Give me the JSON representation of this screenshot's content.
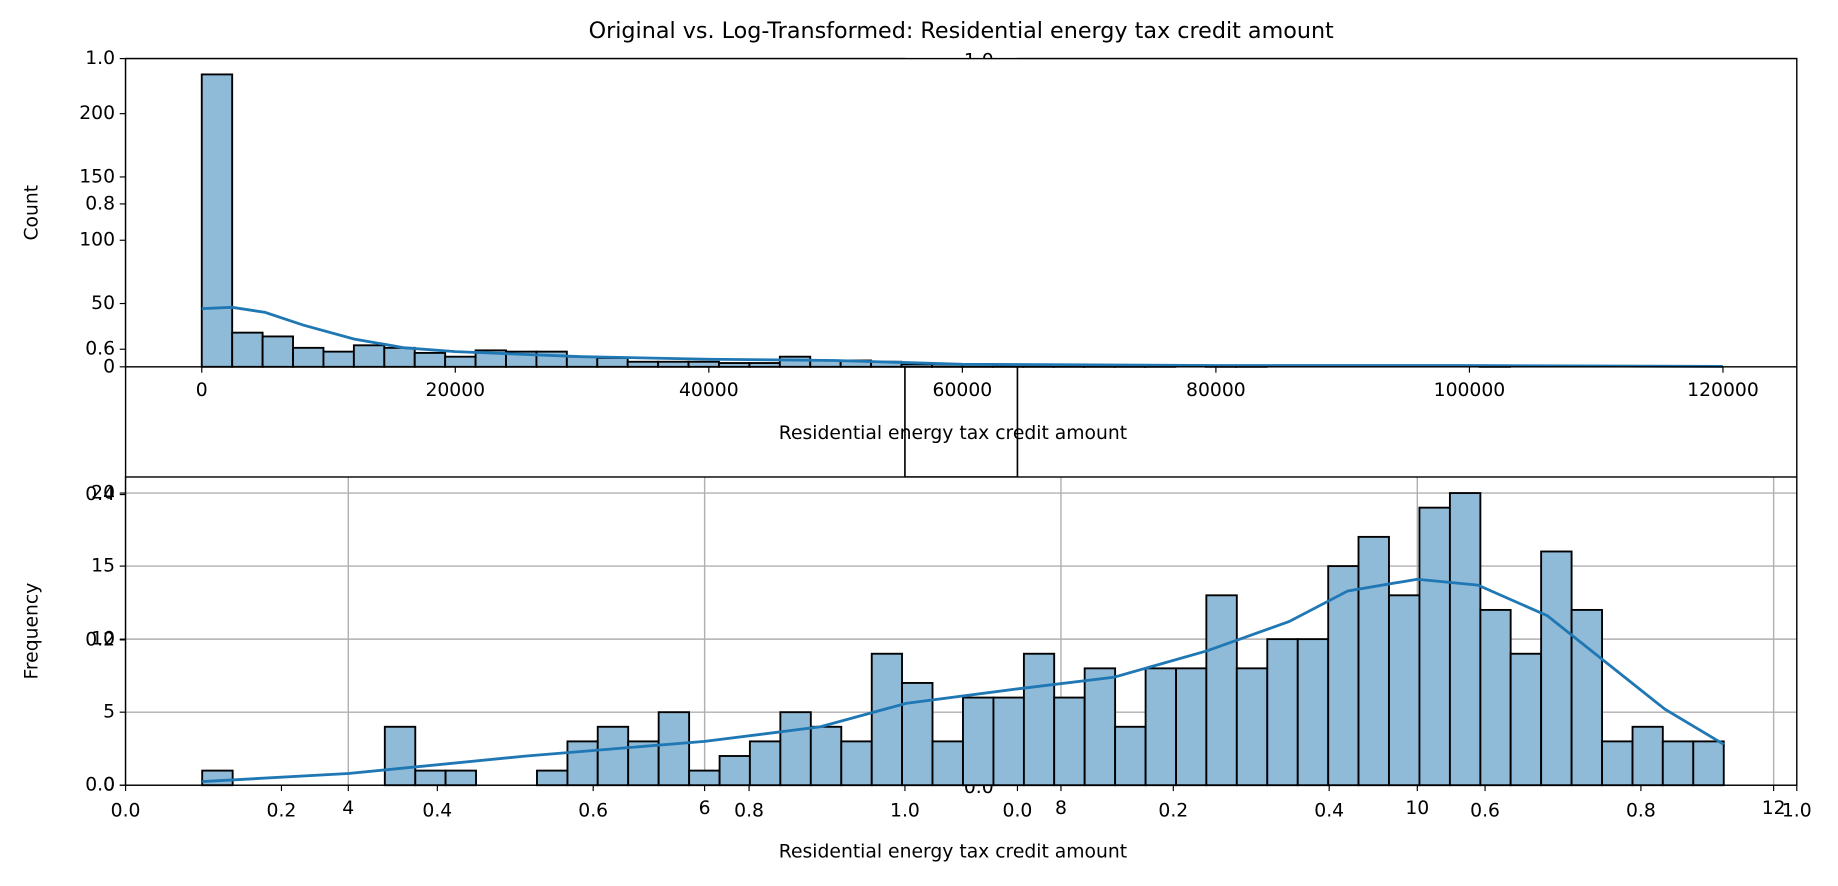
{
  "title": "Original vs. Log-Transformed: Residential energy tax credit amount",
  "chart_data": [
    {
      "type": "histogram",
      "xlabel": "Residential energy tax credit amount",
      "ylabel": "Count",
      "bins": [
        0,
        2400,
        4800,
        7200,
        9600,
        12000,
        14400,
        16800,
        19200,
        21600,
        24000,
        26400,
        28800,
        31200,
        33600,
        36000,
        38400,
        40800,
        43200,
        45600,
        48000,
        50400,
        52800,
        55200,
        57600,
        60000,
        62400,
        64800,
        67200,
        69600,
        72000,
        74400,
        76800,
        79200,
        81600,
        84000,
        86400,
        88800,
        91200,
        93600,
        96000,
        98400,
        100800,
        103200,
        105600,
        108000,
        110400,
        112800,
        115200,
        117600,
        120000
      ],
      "counts": [
        231,
        27,
        24,
        15,
        12,
        17,
        15,
        11,
        8,
        13,
        12,
        12,
        8,
        7,
        4,
        4,
        4,
        3,
        3,
        8,
        5,
        5,
        4,
        2,
        2,
        2,
        1,
        1,
        1,
        1,
        1,
        1,
        0,
        1,
        1,
        0,
        0,
        0,
        0,
        0,
        0,
        0,
        1,
        0,
        0,
        0,
        0,
        0,
        0,
        0
      ],
      "color": "#8fbbd9",
      "edgecolor": "#000000",
      "kde": {
        "x": [
          0,
          2400,
          5000,
          8000,
          12000,
          16000,
          20000,
          30000,
          40000,
          50000,
          60000,
          80000,
          100000,
          120000
        ],
        "values": [
          46,
          47,
          43,
          33,
          22,
          15,
          12,
          8,
          6,
          5,
          2,
          1,
          1,
          0.3
        ],
        "color": "#1f77b4"
      },
      "xlim": [
        -6009,
        125824
      ],
      "ylim": [
        0,
        243.5
      ],
      "xticks": [
        0,
        20000,
        40000,
        60000,
        80000,
        100000,
        120000
      ],
      "yticks": [
        0,
        50,
        100,
        150,
        200
      ],
      "grid": false
    },
    {
      "type": "histogram",
      "xlabel": "Residential energy tax credit amount",
      "ylabel": "Frequency",
      "bins": [
        3.18,
        3.351,
        3.522,
        3.692,
        3.863,
        4.034,
        4.205,
        4.376,
        4.546,
        4.717,
        4.888,
        5.059,
        5.23,
        5.4,
        5.571,
        5.742,
        5.913,
        6.084,
        6.254,
        6.425,
        6.596,
        6.767,
        6.938,
        7.108,
        7.279,
        7.45,
        7.621,
        7.792,
        7.962,
        8.133,
        8.304,
        8.475,
        8.646,
        8.816,
        8.987,
        9.158,
        9.329,
        9.5,
        9.67,
        9.841,
        10.012,
        10.183,
        10.354,
        10.524,
        10.695,
        10.866,
        11.037,
        11.208,
        11.378,
        11.549,
        11.72
      ],
      "counts": [
        1,
        0,
        0,
        0,
        0,
        0,
        4,
        1,
        1,
        0,
        0,
        1,
        3,
        4,
        3,
        5,
        1,
        2,
        3,
        5,
        4,
        3,
        9,
        7,
        3,
        6,
        6,
        9,
        6,
        8,
        4,
        8,
        8,
        13,
        8,
        10,
        10,
        15,
        17,
        13,
        19,
        20,
        12,
        9,
        16,
        12,
        3,
        4,
        3,
        3
      ],
      "color": "#8fbbd9",
      "edgecolor": "#000000",
      "kde": {
        "x": [
          3.18,
          4,
          5,
          6,
          6.65,
          7.13,
          7.76,
          8.3,
          8.82,
          9.28,
          9.61,
          10,
          10.34,
          10.73,
          11.06,
          11.39,
          11.72
        ],
        "values": [
          0.25,
          0.8,
          2.0,
          3.0,
          4.0,
          5.6,
          6.6,
          7.4,
          9.2,
          11.2,
          13.3,
          14.1,
          13.7,
          11.6,
          8.4,
          5.2,
          2.8
        ],
        "color": "#1f77b4"
      },
      "xlim": [
        2.75,
        12.13
      ],
      "ylim": [
        0,
        21.1
      ],
      "xticks": [
        4,
        6,
        8,
        10,
        12
      ],
      "yticks": [
        0,
        5,
        10,
        15,
        20
      ],
      "grid": true
    },
    {
      "type": "axes",
      "xlim": [
        0,
        1
      ],
      "ylim": [
        0,
        1
      ],
      "xticks": [
        {
          "value": 0,
          "label": "0.0"
        },
        {
          "value": 0.2,
          "label": "0.2"
        },
        {
          "value": 0.4,
          "label": "0.4"
        },
        {
          "value": 0.6,
          "label": "0.6"
        },
        {
          "value": 0.8,
          "label": "0.8"
        },
        {
          "value": 1,
          "label": "1.0"
        }
      ],
      "yticks": [
        {
          "value": 0,
          "label": "0.0"
        },
        {
          "value": 0.2,
          "label": "0.2"
        },
        {
          "value": 0.4,
          "label": "0.4"
        },
        {
          "value": 0.6,
          "label": "0.6"
        },
        {
          "value": 0.8,
          "label": "0.8"
        },
        {
          "value": 1,
          "label": "1.0"
        }
      ]
    },
    {
      "type": "axes",
      "xlim": [
        0,
        1
      ],
      "xticks": [
        {
          "value": 0,
          "label": "0.0"
        },
        {
          "value": 0.2,
          "label": "0.2"
        },
        {
          "value": 0.4,
          "label": "0.4"
        },
        {
          "value": 0.6,
          "label": "0.6"
        },
        {
          "value": 0.8,
          "label": "0.8"
        },
        {
          "value": 1,
          "label": "1.0"
        }
      ]
    },
    {
      "type": "axes",
      "ylim": [
        0,
        1
      ],
      "yticks": [
        {
          "value": 0,
          "label": "0.0"
        },
        {
          "value": 1,
          "label": "1.0"
        }
      ]
    }
  ]
}
